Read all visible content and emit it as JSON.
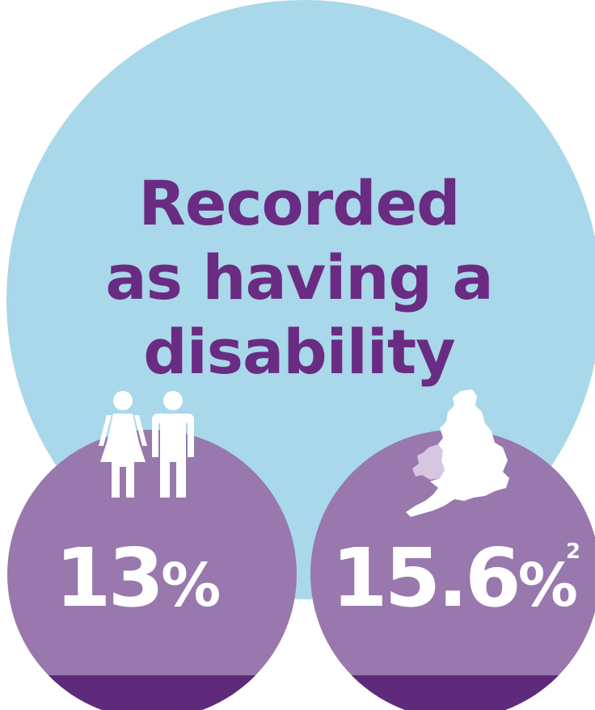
{
  "headline": {
    "lines": [
      "Recorded",
      "as having a",
      "disability"
    ]
  },
  "stats": [
    {
      "value": "13",
      "unit": "%",
      "icon": "people-icon"
    },
    {
      "value": "15.6",
      "unit": "%",
      "superscript": "2",
      "icon": "england-wales-map-icon"
    }
  ],
  "colors": {
    "background_circle": "#a8d8ea",
    "headline_text": "#6a2c82",
    "stat_circle": "#9878ad",
    "stat_base": "#5f2a7a",
    "icon_primary": "#ffffff",
    "icon_secondary": "#d6c6e2"
  }
}
